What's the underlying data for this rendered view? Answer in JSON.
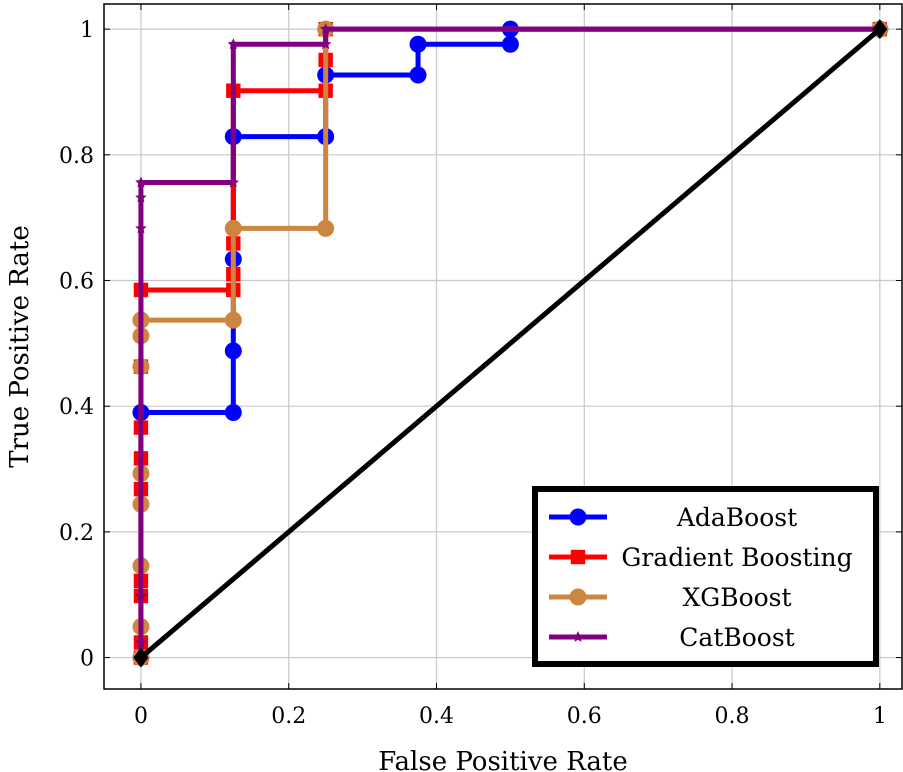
{
  "chart_data": {
    "type": "line",
    "xlabel": "False Positive Rate",
    "ylabel": "True Positive Rate",
    "xlim": [
      -0.05,
      1.03
    ],
    "ylim": [
      -0.05,
      1.04
    ],
    "x_ticks": [
      0,
      0.2,
      0.4,
      0.6,
      0.8,
      1
    ],
    "y_ticks": [
      0,
      0.2,
      0.4,
      0.6,
      0.8,
      1
    ],
    "x_tick_labels": [
      "0",
      "0.2",
      "0.4",
      "0.6",
      "0.8",
      "1"
    ],
    "y_tick_labels": [
      "0",
      "0.2",
      "0.4",
      "0.6",
      "0.8",
      "1"
    ],
    "grid": true,
    "legend_position": "bottom-right",
    "series": [
      {
        "name": "AdaBoost",
        "color": "#0000ff",
        "marker": "circle",
        "x": [
          0,
          0,
          0.125,
          0.125,
          0.125,
          0.125,
          0.25,
          0.25,
          0.375,
          0.375,
          0.5,
          0.5,
          1
        ],
        "y": [
          0,
          0.39,
          0.39,
          0.488,
          0.634,
          0.829,
          0.829,
          0.927,
          0.927,
          0.976,
          0.976,
          1,
          1
        ]
      },
      {
        "name": "Gradient Boosting",
        "color": "#ff0000",
        "marker": "square",
        "x": [
          0,
          0,
          0,
          0,
          0,
          0,
          0,
          0,
          0,
          0.125,
          0.125,
          0.125,
          0.125,
          0.25,
          0.25,
          0.25,
          1
        ],
        "y": [
          0,
          0.024,
          0.098,
          0.122,
          0.268,
          0.317,
          0.366,
          0.463,
          0.585,
          0.585,
          0.61,
          0.659,
          0.902,
          0.902,
          0.951,
          1,
          1
        ]
      },
      {
        "name": "XGBoost",
        "color": "#cd853f",
        "marker": "circle",
        "x": [
          0,
          0,
          0,
          0,
          0,
          0,
          0,
          0,
          0,
          0.125,
          0.125,
          0.25,
          0.25,
          1
        ],
        "y": [
          0,
          0.049,
          0.146,
          0.244,
          0.293,
          0.463,
          0.512,
          0.537,
          0.537,
          0.537,
          0.683,
          0.683,
          1,
          1
        ]
      },
      {
        "name": "CatBoost",
        "color": "#800080",
        "marker": "star",
        "x": [
          0,
          0,
          0,
          0,
          0,
          0,
          0.125,
          0.125,
          0.25,
          0.25,
          1
        ],
        "y": [
          0,
          0.024,
          0.098,
          0.683,
          0.732,
          0.756,
          0.756,
          0.976,
          0.976,
          1,
          1
        ]
      },
      {
        "name": "",
        "color": "#000000",
        "marker": "diamond",
        "x": [
          0,
          1
        ],
        "y": [
          0,
          1
        ]
      }
    ]
  }
}
